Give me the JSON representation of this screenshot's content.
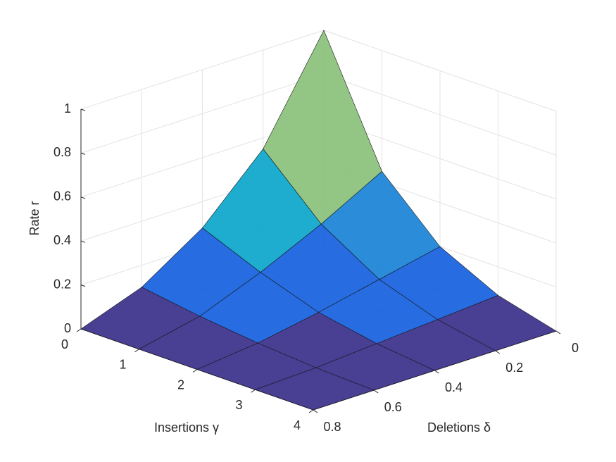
{
  "chart_data": {
    "type": "surface",
    "xlabel": "Insertions γ",
    "ylabel": "Deletions δ",
    "zlabel": "Rate r",
    "x": [
      0,
      1,
      2,
      3,
      4
    ],
    "y": [
      0,
      0.2,
      0.4,
      0.6,
      0.8
    ],
    "z": [
      [
        1,
        0.45,
        0.2,
        0.07,
        0
      ],
      [
        0.55,
        0.3,
        0.14,
        0.05,
        0
      ],
      [
        0.28,
        0.17,
        0.08,
        0.03,
        0
      ],
      [
        0.1,
        0.06,
        0.03,
        0.01,
        0
      ],
      [
        0,
        0,
        0,
        0,
        0
      ]
    ],
    "xlim": [
      0,
      4
    ],
    "ylim": [
      0,
      0.8
    ],
    "zlim": [
      0,
      1
    ],
    "xticks": [
      0,
      1,
      2,
      3,
      4
    ],
    "yticks": [
      0,
      0.2,
      0.4,
      0.6,
      0.8
    ],
    "zticks": [
      0,
      0.2,
      0.4,
      0.6,
      0.8,
      1
    ],
    "grid": true,
    "colormap": [
      "#352a87",
      "#0f5cdd",
      "#1481d6",
      "#06a4ca",
      "#2eb7a4",
      "#87bf77",
      "#d1bb59",
      "#fec832",
      "#f9fb0e"
    ]
  }
}
